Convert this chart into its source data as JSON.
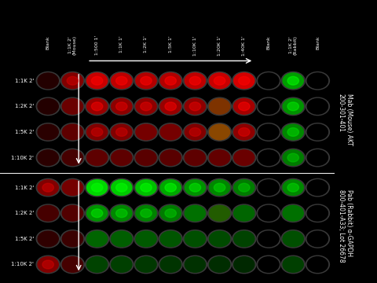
{
  "background_color": "#000000",
  "figure_width": 4.8,
  "figure_height": 3.6,
  "dpi": 100,
  "top_section_label": "Mab (Mouse) AKT\n200-301-401",
  "bottom_section_label": "Pab (Rabbit) α-GAPDH\n800-401-A33; Lot 26678",
  "col_labels": [
    "Blank",
    "1:1K 2'\n(Mouse)",
    "1:500 1'",
    "1:1K 1'",
    "1:2K 1'",
    "1:5K 1'",
    "1:10K 1'",
    "1:20K 1'",
    "1:40K 1'",
    "Blank",
    "1:1K 2'\n(Rabbit)",
    "Blank"
  ],
  "row_labels_top": [
    "1:1K 2'",
    "1:2K 2'",
    "1:5K 2'",
    "1:10K 2'"
  ],
  "row_labels_bottom": [
    "1:1K 2'",
    "1:2K 2'",
    "1:5K 2'",
    "1:10K 2'"
  ],
  "n_cols": 12,
  "n_rows_per_section": 4,
  "arrow_color": "#ffffff",
  "divider_color": "#ffffff",
  "text_color": "#ffffff",
  "col_label_fontsize": 4.5,
  "row_label_fontsize": 5.0,
  "side_label_fontsize": 5.5,
  "top_wells": [
    [
      {
        "color": "red",
        "intensity": 0.15
      },
      {
        "color": "red",
        "intensity": 0.55
      },
      {
        "color": "red",
        "intensity": 0.85
      },
      {
        "color": "red",
        "intensity": 0.8
      },
      {
        "color": "red",
        "intensity": 0.75
      },
      {
        "color": "red",
        "intensity": 0.75
      },
      {
        "color": "red",
        "intensity": 0.8
      },
      {
        "color": "red",
        "intensity": 0.85
      },
      {
        "color": "red",
        "intensity": 0.9
      },
      {
        "color": "black",
        "intensity": 0.0
      },
      {
        "color": "green",
        "intensity": 0.7
      },
      {
        "color": "black",
        "intensity": 0.0
      }
    ],
    [
      {
        "color": "red",
        "intensity": 0.15
      },
      {
        "color": "red",
        "intensity": 0.45
      },
      {
        "color": "red",
        "intensity": 0.65
      },
      {
        "color": "red",
        "intensity": 0.6
      },
      {
        "color": "red",
        "intensity": 0.6
      },
      {
        "color": "red",
        "intensity": 0.65
      },
      {
        "color": "red",
        "intensity": 0.6
      },
      {
        "color": "mixed",
        "red_i": 0.55,
        "green_i": 0.25
      },
      {
        "color": "red",
        "intensity": 0.7
      },
      {
        "color": "black",
        "intensity": 0.0
      },
      {
        "color": "green",
        "intensity": 0.65
      },
      {
        "color": "black",
        "intensity": 0.0
      }
    ],
    [
      {
        "color": "red",
        "intensity": 0.18
      },
      {
        "color": "red",
        "intensity": 0.4
      },
      {
        "color": "red",
        "intensity": 0.55
      },
      {
        "color": "red",
        "intensity": 0.55
      },
      {
        "color": "red",
        "intensity": 0.5
      },
      {
        "color": "red",
        "intensity": 0.5
      },
      {
        "color": "red",
        "intensity": 0.55
      },
      {
        "color": "mixed",
        "red_i": 0.6,
        "green_i": 0.35
      },
      {
        "color": "red",
        "intensity": 0.6
      },
      {
        "color": "black",
        "intensity": 0.0
      },
      {
        "color": "green",
        "intensity": 0.6
      },
      {
        "color": "black",
        "intensity": 0.0
      }
    ],
    [
      {
        "color": "red",
        "intensity": 0.18
      },
      {
        "color": "red",
        "intensity": 0.3
      },
      {
        "color": "red",
        "intensity": 0.4
      },
      {
        "color": "red",
        "intensity": 0.4
      },
      {
        "color": "red",
        "intensity": 0.38
      },
      {
        "color": "red",
        "intensity": 0.38
      },
      {
        "color": "red",
        "intensity": 0.4
      },
      {
        "color": "red",
        "intensity": 0.42
      },
      {
        "color": "red",
        "intensity": 0.45
      },
      {
        "color": "black",
        "intensity": 0.0
      },
      {
        "color": "green",
        "intensity": 0.55
      },
      {
        "color": "black",
        "intensity": 0.0
      }
    ]
  ],
  "bottom_wells": [
    [
      {
        "color": "red",
        "intensity": 0.55
      },
      {
        "color": "red",
        "intensity": 0.5
      },
      {
        "color": "green",
        "intensity": 0.95
      },
      {
        "color": "green",
        "intensity": 0.9
      },
      {
        "color": "green",
        "intensity": 0.85
      },
      {
        "color": "green",
        "intensity": 0.75
      },
      {
        "color": "green",
        "intensity": 0.65
      },
      {
        "color": "green",
        "intensity": 0.6
      },
      {
        "color": "green",
        "intensity": 0.55
      },
      {
        "color": "black",
        "intensity": 0.0
      },
      {
        "color": "green",
        "intensity": 0.6
      },
      {
        "color": "black",
        "intensity": 0.0
      }
    ],
    [
      {
        "color": "red",
        "intensity": 0.3
      },
      {
        "color": "red",
        "intensity": 0.35
      },
      {
        "color": "green",
        "intensity": 0.65
      },
      {
        "color": "green",
        "intensity": 0.6
      },
      {
        "color": "green",
        "intensity": 0.58
      },
      {
        "color": "green",
        "intensity": 0.55
      },
      {
        "color": "green",
        "intensity": 0.5
      },
      {
        "color": "mixed2",
        "red_i": 0.15,
        "green_i": 0.45
      },
      {
        "color": "green",
        "intensity": 0.45
      },
      {
        "color": "black",
        "intensity": 0.0
      },
      {
        "color": "green",
        "intensity": 0.5
      },
      {
        "color": "black",
        "intensity": 0.0
      }
    ],
    [
      {
        "color": "red",
        "intensity": 0.2
      },
      {
        "color": "red",
        "intensity": 0.25
      },
      {
        "color": "green",
        "intensity": 0.45
      },
      {
        "color": "green",
        "intensity": 0.42
      },
      {
        "color": "green",
        "intensity": 0.4
      },
      {
        "color": "green",
        "intensity": 0.38
      },
      {
        "color": "green",
        "intensity": 0.35
      },
      {
        "color": "green",
        "intensity": 0.33
      },
      {
        "color": "green",
        "intensity": 0.3
      },
      {
        "color": "black",
        "intensity": 0.0
      },
      {
        "color": "green",
        "intensity": 0.35
      },
      {
        "color": "black",
        "intensity": 0.0
      }
    ],
    [
      {
        "color": "red",
        "intensity": 0.55
      },
      {
        "color": "red",
        "intensity": 0.3
      },
      {
        "color": "green",
        "intensity": 0.3
      },
      {
        "color": "green",
        "intensity": 0.28
      },
      {
        "color": "green",
        "intensity": 0.25
      },
      {
        "color": "green",
        "intensity": 0.23
      },
      {
        "color": "green",
        "intensity": 0.22
      },
      {
        "color": "green",
        "intensity": 0.2
      },
      {
        "color": "green",
        "intensity": 0.18
      },
      {
        "color": "black",
        "intensity": 0.0
      },
      {
        "color": "green",
        "intensity": 0.28
      },
      {
        "color": "black",
        "intensity": 0.0
      }
    ]
  ]
}
